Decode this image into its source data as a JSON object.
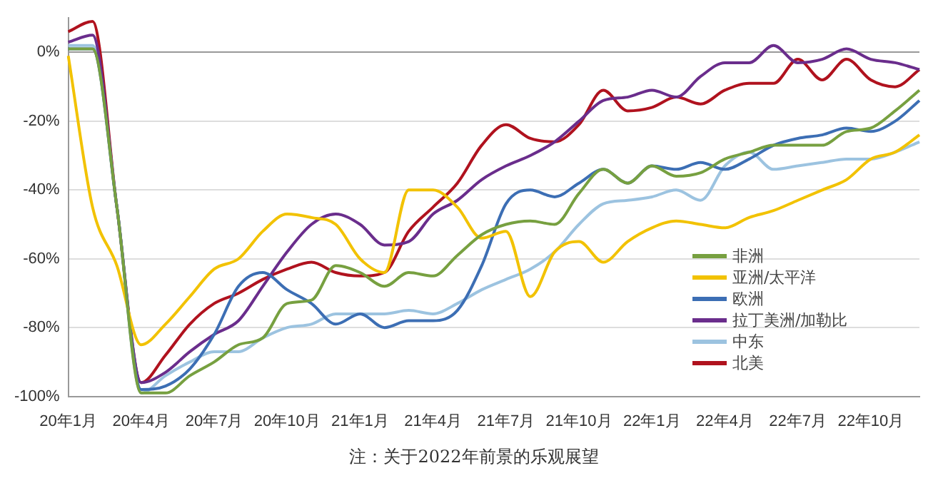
{
  "chart_data": {
    "type": "line",
    "categories": [
      "20年1月",
      null,
      null,
      "20年4月",
      null,
      null,
      "20年7月",
      null,
      null,
      "20年10月",
      null,
      null,
      "21年1月",
      null,
      null,
      "21年4月",
      null,
      null,
      "21年7月",
      null,
      null,
      "21年10月",
      null,
      null,
      "22年1月",
      null,
      null,
      "22年4月",
      null,
      null,
      "22年7月",
      null,
      null,
      "22年10月",
      null,
      null
    ],
    "series": [
      {
        "name": "非洲",
        "color": "#77a040",
        "values": [
          1,
          1,
          -45,
          -99,
          -99,
          -94,
          -90,
          -85,
          -83,
          -73,
          -72,
          -62,
          -64,
          -68,
          -64,
          -65,
          -59,
          -53,
          -50,
          -49,
          -50,
          -41,
          -34,
          -38,
          -33,
          -36,
          -35,
          -31,
          -29,
          -27,
          -27,
          -27,
          -23,
          -22,
          -17,
          -11
        ]
      },
      {
        "name": "亚洲/太平洋",
        "color": "#f2c200",
        "values": [
          -1,
          -45,
          -62,
          -85,
          -79,
          -71,
          -63,
          -60,
          -52,
          -47,
          -48,
          -50,
          -60,
          -64,
          -40,
          -40,
          -45,
          -54,
          -52,
          -71,
          -58,
          -55,
          -61,
          -55,
          -51,
          -49,
          -50,
          -51,
          -48,
          -46,
          -43,
          -40,
          -37,
          -31,
          -29,
          -24
        ]
      },
      {
        "name": "欧洲",
        "color": "#3c6eb4",
        "values": [
          1,
          1,
          -45,
          -98,
          -97,
          -92,
          -82,
          -68,
          -64,
          -69,
          -73,
          -79,
          -76,
          -80,
          -78,
          -78,
          -75,
          -62,
          -44,
          -40,
          -42,
          -38,
          -34,
          -38,
          -33,
          -34,
          -32,
          -34,
          -31,
          -27,
          -25,
          -24,
          -22,
          -23,
          -20,
          -14
        ]
      },
      {
        "name": "拉丁美洲/加勒比",
        "color": "#6a2d8c",
        "values": [
          3,
          5,
          -45,
          -96,
          -93,
          -87,
          -82,
          -78,
          -68,
          -58,
          -50,
          -47,
          -50,
          -56,
          -55,
          -47,
          -43,
          -37,
          -33,
          -30,
          -26,
          -20,
          -14,
          -13,
          -11,
          -13,
          -7,
          -3,
          -3,
          2,
          -3,
          -2,
          1,
          -2,
          -3,
          -5
        ]
      },
      {
        "name": "中东",
        "color": "#9cc3e0",
        "values": [
          2,
          2,
          -45,
          -99,
          -94,
          -90,
          -87,
          -87,
          -83,
          -80,
          -79,
          -76,
          -76,
          -76,
          -75,
          -76,
          -73,
          -69,
          -66,
          -63,
          -58,
          -50,
          -44,
          -43,
          -42,
          -40,
          -43,
          -33,
          -29,
          -34,
          -33,
          -32,
          -31,
          -31,
          -29,
          -26
        ]
      },
      {
        "name": "北美",
        "color": "#b0121e",
        "values": [
          6,
          9,
          -45,
          -96,
          -88,
          -79,
          -73,
          -70,
          -66,
          -63,
          -61,
          -64,
          -65,
          -64,
          -52,
          -45,
          -38,
          -27,
          -21,
          -25,
          -26,
          -21,
          -11,
          -17,
          -16,
          -13,
          -15,
          -11,
          -9,
          -9,
          -2,
          -8,
          -2,
          -8,
          -10,
          -5
        ]
      }
    ],
    "ylim": [
      -100,
      10
    ],
    "yticks": [
      {
        "value": -100,
        "label": "-100%"
      },
      {
        "value": -80,
        "label": "-80%"
      },
      {
        "value": -60,
        "label": "-60%"
      },
      {
        "value": -40,
        "label": "-40%"
      },
      {
        "value": -20,
        "label": "-20%"
      },
      {
        "value": 0,
        "label": "0%"
      }
    ],
    "grid": "y",
    "legend": "bottom right",
    "marker": "none",
    "line_style": "solid",
    "annotations": [
      "注：关于2022年前景的乐观展望"
    ]
  }
}
